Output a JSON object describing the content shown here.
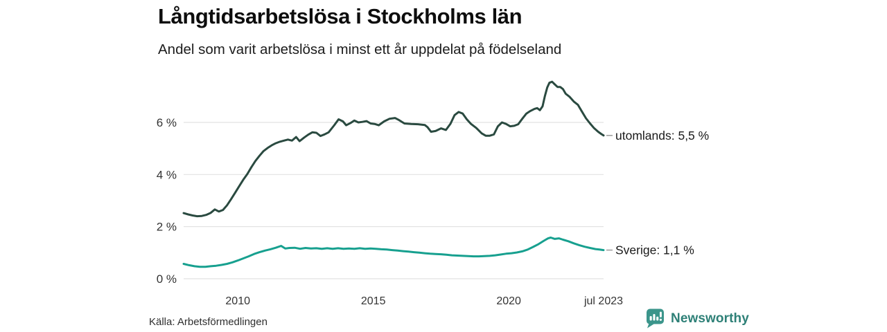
{
  "chart_data": {
    "type": "line",
    "title": "Långtidsarbetslösa i Stockholms län",
    "subtitle": "Andel som varit arbetslösa i minst ett år uppdelat på födelseland",
    "xlabel": "",
    "ylabel": "",
    "xlim": [
      2008,
      2023.5
    ],
    "ylim": [
      0,
      7.8
    ],
    "grid": "horizontal",
    "grid_color": "#e2e2e2",
    "leader_dash_color": "#9a9a9a",
    "yticks": [
      {
        "value": 0,
        "label": "0 %"
      },
      {
        "value": 2,
        "label": "2 %"
      },
      {
        "value": 4,
        "label": "4 %"
      },
      {
        "value": 6,
        "label": "6 %"
      }
    ],
    "xticks": [
      {
        "value": 2010,
        "label": "2010"
      },
      {
        "value": 2015,
        "label": "2015"
      },
      {
        "value": 2020,
        "label": "2020"
      },
      {
        "value": 2023.5,
        "label": "jul 2023"
      }
    ],
    "series": [
      {
        "name": "utomlands",
        "end_label": "utomlands: 5,5 %",
        "latest_value": "5,5 %",
        "color": "#2a4a40",
        "points": [
          [
            2008.0,
            2.52
          ],
          [
            2008.17,
            2.47
          ],
          [
            2008.33,
            2.43
          ],
          [
            2008.5,
            2.4
          ],
          [
            2008.67,
            2.41
          ],
          [
            2008.83,
            2.45
          ],
          [
            2009.0,
            2.53
          ],
          [
            2009.15,
            2.66
          ],
          [
            2009.3,
            2.58
          ],
          [
            2009.45,
            2.64
          ],
          [
            2009.6,
            2.82
          ],
          [
            2009.75,
            3.05
          ],
          [
            2009.9,
            3.3
          ],
          [
            2010.05,
            3.55
          ],
          [
            2010.2,
            3.8
          ],
          [
            2010.35,
            4.02
          ],
          [
            2010.5,
            4.28
          ],
          [
            2010.65,
            4.52
          ],
          [
            2010.8,
            4.72
          ],
          [
            2010.95,
            4.9
          ],
          [
            2011.1,
            5.02
          ],
          [
            2011.25,
            5.12
          ],
          [
            2011.4,
            5.2
          ],
          [
            2011.55,
            5.26
          ],
          [
            2011.7,
            5.3
          ],
          [
            2011.85,
            5.34
          ],
          [
            2012.0,
            5.3
          ],
          [
            2012.15,
            5.44
          ],
          [
            2012.28,
            5.28
          ],
          [
            2012.45,
            5.42
          ],
          [
            2012.6,
            5.53
          ],
          [
            2012.75,
            5.62
          ],
          [
            2012.9,
            5.6
          ],
          [
            2013.05,
            5.48
          ],
          [
            2013.2,
            5.54
          ],
          [
            2013.35,
            5.62
          ],
          [
            2013.55,
            5.88
          ],
          [
            2013.72,
            6.12
          ],
          [
            2013.88,
            6.04
          ],
          [
            2014.0,
            5.89
          ],
          [
            2014.15,
            5.97
          ],
          [
            2014.3,
            6.07
          ],
          [
            2014.45,
            6.0
          ],
          [
            2014.6,
            6.02
          ],
          [
            2014.75,
            6.05
          ],
          [
            2014.9,
            5.96
          ],
          [
            2015.05,
            5.94
          ],
          [
            2015.2,
            5.89
          ],
          [
            2015.4,
            6.04
          ],
          [
            2015.6,
            6.14
          ],
          [
            2015.8,
            6.17
          ],
          [
            2015.95,
            6.09
          ],
          [
            2016.15,
            5.96
          ],
          [
            2016.4,
            5.94
          ],
          [
            2016.65,
            5.93
          ],
          [
            2016.9,
            5.9
          ],
          [
            2017.0,
            5.82
          ],
          [
            2017.13,
            5.64
          ],
          [
            2017.3,
            5.67
          ],
          [
            2017.5,
            5.77
          ],
          [
            2017.68,
            5.71
          ],
          [
            2017.85,
            5.95
          ],
          [
            2018.0,
            6.28
          ],
          [
            2018.15,
            6.4
          ],
          [
            2018.3,
            6.34
          ],
          [
            2018.45,
            6.12
          ],
          [
            2018.6,
            5.95
          ],
          [
            2018.8,
            5.79
          ],
          [
            2019.0,
            5.58
          ],
          [
            2019.15,
            5.49
          ],
          [
            2019.3,
            5.49
          ],
          [
            2019.45,
            5.54
          ],
          [
            2019.6,
            5.85
          ],
          [
            2019.75,
            6.0
          ],
          [
            2019.9,
            5.94
          ],
          [
            2020.05,
            5.85
          ],
          [
            2020.2,
            5.87
          ],
          [
            2020.35,
            5.93
          ],
          [
            2020.5,
            6.14
          ],
          [
            2020.65,
            6.34
          ],
          [
            2020.8,
            6.44
          ],
          [
            2020.95,
            6.52
          ],
          [
            2021.05,
            6.55
          ],
          [
            2021.15,
            6.47
          ],
          [
            2021.25,
            6.62
          ],
          [
            2021.33,
            7.0
          ],
          [
            2021.42,
            7.34
          ],
          [
            2021.5,
            7.52
          ],
          [
            2021.6,
            7.56
          ],
          [
            2021.7,
            7.46
          ],
          [
            2021.8,
            7.36
          ],
          [
            2021.9,
            7.36
          ],
          [
            2022.0,
            7.28
          ],
          [
            2022.1,
            7.1
          ],
          [
            2022.25,
            6.98
          ],
          [
            2022.4,
            6.8
          ],
          [
            2022.55,
            6.68
          ],
          [
            2022.7,
            6.42
          ],
          [
            2022.85,
            6.16
          ],
          [
            2023.0,
            5.96
          ],
          [
            2023.15,
            5.78
          ],
          [
            2023.3,
            5.64
          ],
          [
            2023.42,
            5.55
          ],
          [
            2023.5,
            5.5
          ]
        ]
      },
      {
        "name": "Sverige",
        "end_label": "Sverige: 1,1 %",
        "latest_value": "1,1 %",
        "color": "#17a08f",
        "points": [
          [
            2008.0,
            0.57
          ],
          [
            2008.2,
            0.52
          ],
          [
            2008.4,
            0.48
          ],
          [
            2008.6,
            0.46
          ],
          [
            2008.8,
            0.46
          ],
          [
            2009.0,
            0.48
          ],
          [
            2009.2,
            0.5
          ],
          [
            2009.4,
            0.53
          ],
          [
            2009.6,
            0.57
          ],
          [
            2009.8,
            0.63
          ],
          [
            2010.0,
            0.7
          ],
          [
            2010.2,
            0.78
          ],
          [
            2010.4,
            0.86
          ],
          [
            2010.6,
            0.95
          ],
          [
            2010.8,
            1.02
          ],
          [
            2011.0,
            1.08
          ],
          [
            2011.2,
            1.13
          ],
          [
            2011.4,
            1.19
          ],
          [
            2011.6,
            1.26
          ],
          [
            2011.75,
            1.16
          ],
          [
            2011.9,
            1.18
          ],
          [
            2012.1,
            1.19
          ],
          [
            2012.3,
            1.15
          ],
          [
            2012.5,
            1.18
          ],
          [
            2012.7,
            1.16
          ],
          [
            2012.9,
            1.17
          ],
          [
            2013.1,
            1.15
          ],
          [
            2013.3,
            1.17
          ],
          [
            2013.5,
            1.15
          ],
          [
            2013.7,
            1.17
          ],
          [
            2013.9,
            1.15
          ],
          [
            2014.1,
            1.16
          ],
          [
            2014.3,
            1.15
          ],
          [
            2014.5,
            1.17
          ],
          [
            2014.7,
            1.15
          ],
          [
            2014.9,
            1.16
          ],
          [
            2015.1,
            1.15
          ],
          [
            2015.3,
            1.13
          ],
          [
            2015.5,
            1.12
          ],
          [
            2015.7,
            1.1
          ],
          [
            2015.9,
            1.08
          ],
          [
            2016.1,
            1.06
          ],
          [
            2016.3,
            1.04
          ],
          [
            2016.5,
            1.02
          ],
          [
            2016.7,
            1.0
          ],
          [
            2016.9,
            0.98
          ],
          [
            2017.1,
            0.96
          ],
          [
            2017.3,
            0.95
          ],
          [
            2017.5,
            0.94
          ],
          [
            2017.7,
            0.92
          ],
          [
            2017.9,
            0.9
          ],
          [
            2018.1,
            0.89
          ],
          [
            2018.3,
            0.88
          ],
          [
            2018.5,
            0.87
          ],
          [
            2018.7,
            0.86
          ],
          [
            2018.9,
            0.86
          ],
          [
            2019.1,
            0.87
          ],
          [
            2019.3,
            0.88
          ],
          [
            2019.5,
            0.9
          ],
          [
            2019.7,
            0.93
          ],
          [
            2019.9,
            0.96
          ],
          [
            2020.1,
            0.98
          ],
          [
            2020.3,
            1.01
          ],
          [
            2020.5,
            1.05
          ],
          [
            2020.7,
            1.12
          ],
          [
            2020.9,
            1.22
          ],
          [
            2021.1,
            1.33
          ],
          [
            2021.3,
            1.46
          ],
          [
            2021.45,
            1.55
          ],
          [
            2021.55,
            1.58
          ],
          [
            2021.7,
            1.53
          ],
          [
            2021.85,
            1.55
          ],
          [
            2022.0,
            1.5
          ],
          [
            2022.2,
            1.44
          ],
          [
            2022.4,
            1.36
          ],
          [
            2022.6,
            1.29
          ],
          [
            2022.8,
            1.23
          ],
          [
            2023.0,
            1.18
          ],
          [
            2023.2,
            1.14
          ],
          [
            2023.35,
            1.12
          ],
          [
            2023.5,
            1.1
          ]
        ]
      }
    ],
    "legend_position": "right-end-labels"
  },
  "footer": {
    "source": "Källa: Arbetsförmedlingen",
    "brand": "Newsworthy",
    "brand_text_color": "#2e8077",
    "brand_icon_color": "#3b958b"
  }
}
